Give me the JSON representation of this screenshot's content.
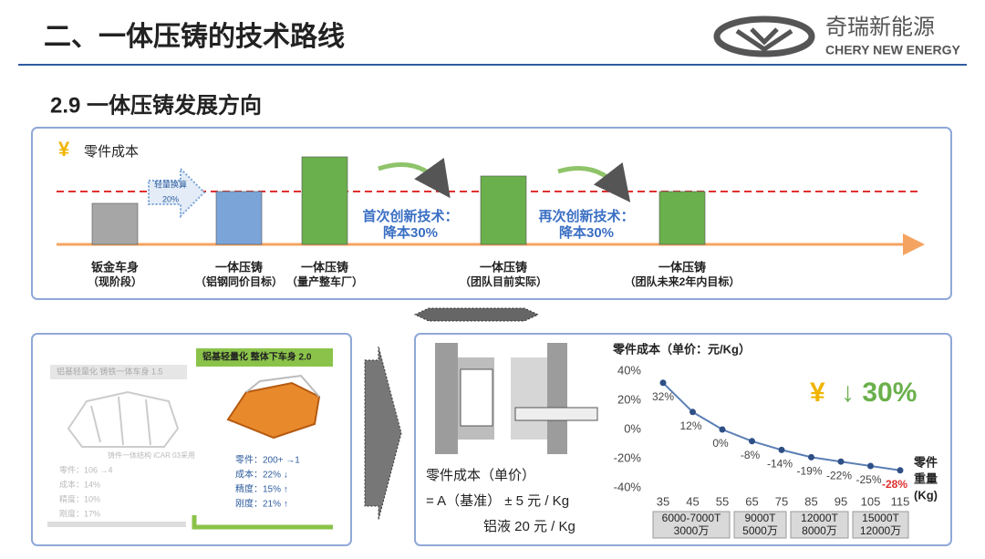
{
  "header": {
    "title": "二、一体压铸的技术路线",
    "logo_cn": "奇瑞新能源",
    "logo_en": "CHERY NEW ENERGY"
  },
  "section_title": "2.9 一体压铸发展方向",
  "chart_data": [
    {
      "type": "bar",
      "icon": "¥",
      "title": "零件成本",
      "categories": [
        "钣金车身",
        "一体压铸",
        "一体压铸",
        "一体压铸",
        "一体压铸"
      ],
      "category_notes": [
        "（现阶段）",
        "（铝钢同价目标）",
        "（量产整车厂）",
        "（团队目前实际）",
        "（团队未来2年内目标）"
      ],
      "values": [
        45,
        58,
        96,
        75,
        58
      ],
      "colors": [
        "#a6a6a6",
        "#7ba4d8",
        "#6ab04c",
        "#6ab04c",
        "#6ab04c"
      ],
      "annotations": [
        "轻量换算",
        "20%",
        "首次创新技术：",
        "降本30%",
        "再次创新技术：",
        "降本30%"
      ]
    },
    {
      "type": "line",
      "title": "零件成本（单价：元/Kg）",
      "x": [
        35,
        45,
        55,
        65,
        75,
        85,
        95,
        105,
        115
      ],
      "values": [
        32,
        12,
        0,
        -8,
        -14,
        -19,
        -22,
        -25,
        -28
      ],
      "value_labels": [
        "32%",
        "12%",
        "0%",
        "-8%",
        "-14%",
        "-19%",
        "-22%",
        "-25%",
        "-28%"
      ],
      "value_label_colors": [
        "#444",
        "#444",
        "#444",
        "#444",
        "#444",
        "#444",
        "#444",
        "#444",
        "#e03030"
      ],
      "color": "#5b7fb5",
      "xlim": [
        35,
        115
      ],
      "ylim": [
        -40,
        40
      ],
      "xticks": [
        35,
        45,
        55,
        65,
        75,
        85,
        95,
        105,
        115
      ],
      "yticks": [
        {
          "value": 40,
          "label": "40%"
        },
        {
          "value": 20,
          "label": "20%"
        },
        {
          "value": 0,
          "label": "0%"
        },
        {
          "value": -20,
          "label": "-20%"
        },
        {
          "value": -40,
          "label": "-40%"
        }
      ],
      "grid": false,
      "x_label": [
        "零件",
        "重量",
        "(Kg)"
      ],
      "badge_icon": "¥",
      "badge_text": "↓ 30%",
      "machines": [
        {
          "tonnage": "6000-7000T",
          "price": "3000万"
        },
        {
          "tonnage": "9000T",
          "price": "5000万"
        },
        {
          "tonnage": "12000T",
          "price": "8000万"
        },
        {
          "tonnage": "15000T",
          "price": "12000万"
        }
      ]
    }
  ],
  "left_panel": {
    "old_title": "铝基轻量化 铸铁一体车身 1.5",
    "old_note": "铸件一体结构 iCAR 03采用",
    "old_stats": [
      "零件：106 →4",
      "成本：14%",
      "精度：10%",
      "刚度：17%"
    ],
    "new_title": "铝基轻量化 整体下车身 2.0",
    "new_stats": [
      "零件：200+ →1",
      "成本：22% ↓",
      "精度：15% ↑",
      "刚度：21% ↑"
    ]
  },
  "cost_formula": {
    "label": "零件成本（单价）",
    "formula": "= A（基准） ± 5 元 / Kg",
    "aluminum": "铝液 20 元 / Kg"
  }
}
